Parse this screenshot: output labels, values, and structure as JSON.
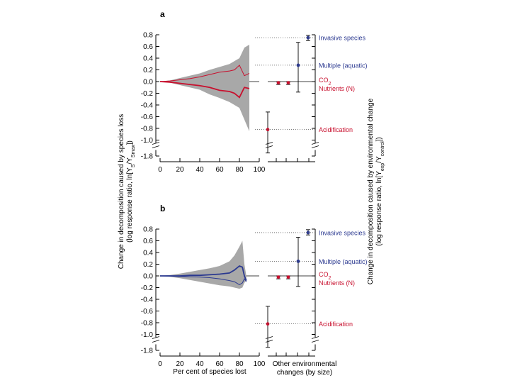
{
  "panel_labels": [
    "a",
    "b"
  ],
  "left_axis_label_line1": "Change in decomposition caused by species loss",
  "left_axis_label_line2": "(log response ratio, ln[Y",
  "left_axis_label_sub1": "S",
  "left_axis_label_mid": "/Y",
  "left_axis_label_sub2": "Smax",
  "left_axis_label_end": "])",
  "right_axis_label_line1": "Change in decomposition caused by environmental change",
  "right_axis_label_line2": "(log response ratio, ln[Y",
  "right_axis_label_sub1": "exp",
  "right_axis_label_mid": "/Y",
  "right_axis_label_sub2": "control",
  "right_axis_label_end": "])",
  "x_axis_label": "Per cent of species lost",
  "env_axis_label_line1": "Other environmental",
  "env_axis_label_line2": "changes (by size)",
  "colors": {
    "red": "#c8102e",
    "blue": "#2b3990",
    "band": "#a8a8a8",
    "black": "#000000"
  },
  "chart_data": [
    {
      "type": "line",
      "panel": "a",
      "xlim": [
        0,
        100
      ],
      "ylim": [
        -1.8,
        0.8
      ],
      "y_break": [
        -1.7,
        -1.0
      ],
      "x_ticks": [
        "0",
        "20",
        "40",
        "60",
        "80",
        "100"
      ],
      "y_ticks": [
        "0.8",
        "0.6",
        "0.4",
        "0.2",
        "0.0",
        "-0.2",
        "-0.4",
        "-0.6",
        "-0.8",
        "-1.0",
        "-1.8"
      ],
      "species_loss": {
        "x": [
          0,
          10,
          20,
          30,
          40,
          50,
          60,
          70,
          75,
          80,
          85,
          90
        ],
        "mean": [
          0,
          -0.01,
          -0.03,
          -0.05,
          -0.07,
          -0.1,
          -0.15,
          -0.17,
          -0.2,
          -0.27,
          -0.1,
          -0.12
        ],
        "upper_line": [
          0,
          0.01,
          0.03,
          0.05,
          0.08,
          0.12,
          0.16,
          0.18,
          0.2,
          0.28,
          0.1,
          0.14
        ],
        "band_upper": [
          0,
          0.02,
          0.06,
          0.1,
          0.14,
          0.2,
          0.25,
          0.3,
          0.35,
          0.4,
          0.58,
          0.63
        ],
        "band_lower": [
          0,
          -0.02,
          -0.06,
          -0.1,
          -0.14,
          -0.22,
          -0.28,
          -0.35,
          -0.4,
          -0.45,
          -0.65,
          -0.85
        ]
      },
      "environmental_changes": [
        {
          "name": "Invasive species",
          "mean": 0.75,
          "lo": 0.7,
          "hi": 0.79,
          "color": "blue"
        },
        {
          "name": "Multiple (aquatic)",
          "mean": 0.28,
          "lo": -0.18,
          "hi": 0.67,
          "color": "blue"
        },
        {
          "name": "CO",
          "name_sub": "2",
          "mean": -0.02,
          "lo": -0.05,
          "hi": 0.0,
          "color": "red"
        },
        {
          "name": "Nutrients (N)",
          "mean": -0.02,
          "lo": -0.05,
          "hi": 0.0,
          "color": "red"
        },
        {
          "name": "Acidification",
          "mean": -0.82,
          "lo": -1.65,
          "hi": -0.52,
          "color": "red"
        }
      ]
    },
    {
      "type": "line",
      "panel": "b",
      "xlim": [
        0,
        100
      ],
      "ylim": [
        -1.8,
        0.8
      ],
      "y_break": [
        -1.7,
        -1.0
      ],
      "x_ticks": [
        "0",
        "20",
        "40",
        "60",
        "80",
        "100"
      ],
      "y_ticks": [
        "0.8",
        "0.6",
        "0.4",
        "0.2",
        "0.0",
        "-0.2",
        "-0.4",
        "-0.6",
        "-0.8",
        "-1.0",
        "-1.8"
      ],
      "species_loss": {
        "x": [
          0,
          10,
          20,
          30,
          40,
          50,
          60,
          70,
          75,
          80,
          83,
          85,
          87
        ],
        "mean": [
          0,
          0.0,
          0.0,
          0.01,
          0.01,
          0.02,
          0.03,
          0.05,
          0.1,
          0.17,
          0.15,
          0.0,
          -0.08
        ],
        "lower_line": [
          0,
          -0.005,
          -0.01,
          -0.015,
          -0.02,
          -0.03,
          -0.05,
          -0.08,
          -0.1,
          -0.15,
          -0.12,
          -0.05,
          -0.1
        ],
        "band_upper": [
          0,
          0.015,
          0.04,
          0.07,
          0.1,
          0.13,
          0.17,
          0.25,
          0.35,
          0.5,
          0.6,
          0.2,
          0.0
        ],
        "band_lower": [
          0,
          -0.015,
          -0.04,
          -0.07,
          -0.1,
          -0.13,
          -0.16,
          -0.18,
          -0.2,
          -0.22,
          -0.2,
          -0.12,
          -0.08
        ]
      },
      "environmental_changes": [
        {
          "name": "Invasive species",
          "mean": 0.74,
          "lo": 0.7,
          "hi": 0.79,
          "color": "blue"
        },
        {
          "name": "Multiple (aquatic)",
          "mean": 0.25,
          "lo": -0.18,
          "hi": 0.66,
          "color": "blue"
        },
        {
          "name": "CO",
          "name_sub": "2",
          "mean": -0.02,
          "lo": -0.05,
          "hi": 0.0,
          "color": "red"
        },
        {
          "name": "Nutrients (N)",
          "mean": -0.02,
          "lo": -0.05,
          "hi": 0.0,
          "color": "red"
        },
        {
          "name": "Acidification",
          "mean": -0.82,
          "lo": -1.65,
          "hi": -0.52,
          "color": "red"
        }
      ]
    }
  ]
}
